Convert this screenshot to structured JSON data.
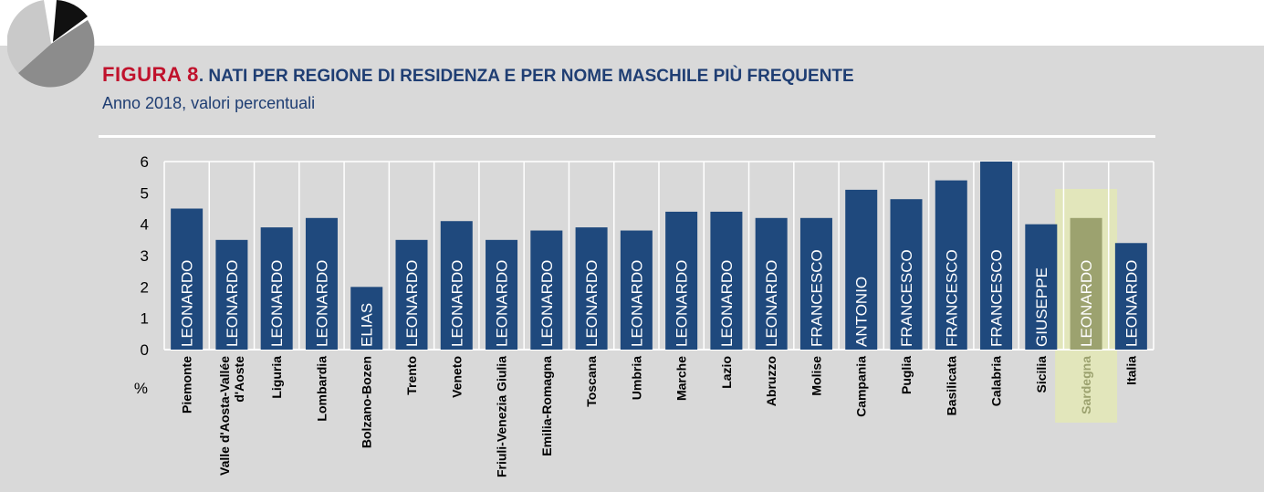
{
  "figure_label": "FIGURA 8",
  "title": ". NATI PER REGIONE DI RESIDENZA E PER NOME MASCHILE PIÙ FREQUENTE",
  "subtitle": "Anno 2018, valori percentuali",
  "colors": {
    "bar": "#1f497d",
    "highlight": "#e4e9b0",
    "highlight_bar": "#9ca26f",
    "title": "#1f3e73",
    "label_red": "#c0122c"
  },
  "chart_data": {
    "type": "bar",
    "ylabel": "%",
    "ylim": [
      0,
      6
    ],
    "yticks": [
      0,
      1,
      2,
      3,
      4,
      5,
      6
    ],
    "grid": "vertical",
    "highlight_category": "Sardegna",
    "categories": [
      "Piemonte",
      "Valle d'Aosta-Vallée d'Aoste",
      "Liguria",
      "Lombardia",
      "Bolzano-Bozen",
      "Trento",
      "Veneto",
      "Friuli-Venezia Giulia",
      "Emilia-Romagna",
      "Toscana",
      "Umbria",
      "Marche",
      "Lazio",
      "Abruzzo",
      "Molise",
      "Campania",
      "Puglia",
      "Basilicata",
      "Calabria",
      "Sicilia",
      "Sardegna",
      "Italia"
    ],
    "category_lines": [
      [
        "Piemonte"
      ],
      [
        "Valle d'Aosta-Vallée",
        "d'Aoste"
      ],
      [
        "Liguria"
      ],
      [
        "Lombardia"
      ],
      [
        "Bolzano-Bozen"
      ],
      [
        "Trento"
      ],
      [
        "Veneto"
      ],
      [
        "Friuli-Venezia Giulia"
      ],
      [
        "Emilia-Romagna"
      ],
      [
        "Toscana"
      ],
      [
        "Umbria"
      ],
      [
        "Marche"
      ],
      [
        "Lazio"
      ],
      [
        "Abruzzo"
      ],
      [
        "Molise"
      ],
      [
        "Campania"
      ],
      [
        "Puglia"
      ],
      [
        "Basilicata"
      ],
      [
        "Calabria"
      ],
      [
        "Sicilia"
      ],
      [
        "Sardegna"
      ],
      [
        "Italia"
      ]
    ],
    "values": [
      4.5,
      3.5,
      3.9,
      4.2,
      2.0,
      3.5,
      4.1,
      3.5,
      3.8,
      3.9,
      3.8,
      4.4,
      4.4,
      4.2,
      4.2,
      5.1,
      4.8,
      5.4,
      6.0,
      4.0,
      4.2,
      3.4
    ],
    "names": [
      "LEONARDO",
      "LEONARDO",
      "LEONARDO",
      "LEONARDO",
      "ELIAS",
      "LEONARDO",
      "LEONARDO",
      "LEONARDO",
      "LEONARDO",
      "LEONARDO",
      "LEONARDO",
      "LEONARDO",
      "LEONARDO",
      "LEONARDO",
      "FRANCESCO",
      "ANTONIO",
      "FRANCESCO",
      "FRANCESCO",
      "FRANCESCO",
      "GIUSEPPE",
      "LEONARDO",
      "LEONARDO"
    ]
  }
}
